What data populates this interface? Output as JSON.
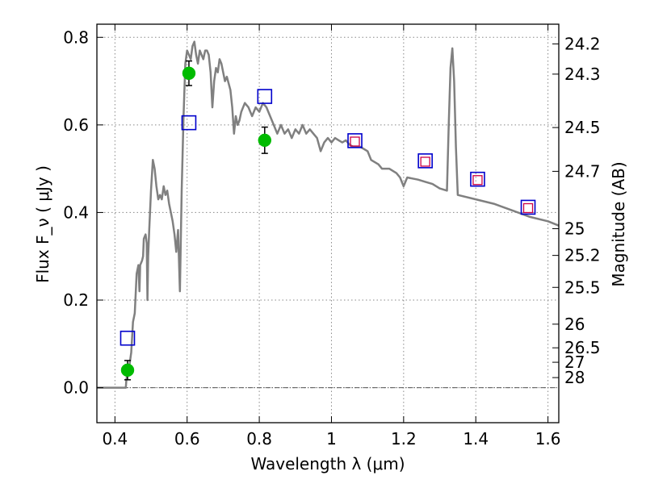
{
  "chart_data": {
    "type": "line",
    "title": "",
    "xlabel": "Wavelength  λ (μm)",
    "ylabel": "Flux  F_ν  ( μJy )",
    "y2label": "Magnitude (AB)",
    "xlim": [
      0.35,
      1.63
    ],
    "ylim": [
      -0.08,
      0.83
    ],
    "grid": true,
    "legend": "none",
    "x_ticks": [
      {
        "value": 0.4,
        "label": "0.4"
      },
      {
        "value": 0.6,
        "label": "0.6"
      },
      {
        "value": 0.8,
        "label": "0.8"
      },
      {
        "value": 1.0,
        "label": "1"
      },
      {
        "value": 1.2,
        "label": "1.2"
      },
      {
        "value": 1.4,
        "label": "1.4"
      },
      {
        "value": 1.6,
        "label": "1.6"
      }
    ],
    "y_ticks": [
      {
        "value": 0.0,
        "label": "0.0"
      },
      {
        "value": 0.2,
        "label": "0.2"
      },
      {
        "value": 0.4,
        "label": "0.4"
      },
      {
        "value": 0.6,
        "label": "0.6"
      },
      {
        "value": 0.8,
        "label": "0.8"
      }
    ],
    "magnitude_ticks": [
      {
        "value": 0.785,
        "label": "24.2"
      },
      {
        "value": 0.716,
        "label": "24.3"
      },
      {
        "value": 0.594,
        "label": "24.5"
      },
      {
        "value": 0.494,
        "label": "24.7"
      },
      {
        "value": 0.363,
        "label": "25"
      },
      {
        "value": 0.302,
        "label": "25.2"
      },
      {
        "value": 0.229,
        "label": "25.5"
      },
      {
        "value": 0.145,
        "label": "26"
      },
      {
        "value": 0.091,
        "label": "26.5"
      },
      {
        "value": 0.058,
        "label": "27"
      },
      {
        "value": 0.023,
        "label": "28"
      }
    ],
    "colors": {
      "model": "#808080",
      "observed": "#00bb00",
      "model_photometry": "#0000cc",
      "alt_photometry": "#cc0044",
      "error_bar": "#000000",
      "grid": "#888888",
      "zero_line": "#555555"
    },
    "series": [
      {
        "type": "line",
        "points": [
          [
            0.35,
            0.0
          ],
          [
            0.43,
            0.0
          ],
          [
            0.432,
            0.02
          ],
          [
            0.44,
            0.05
          ],
          [
            0.445,
            0.08
          ],
          [
            0.45,
            0.15
          ],
          [
            0.455,
            0.17
          ],
          [
            0.46,
            0.26
          ],
          [
            0.465,
            0.28
          ],
          [
            0.468,
            0.22
          ],
          [
            0.47,
            0.28
          ],
          [
            0.475,
            0.29
          ],
          [
            0.478,
            0.3
          ],
          [
            0.48,
            0.34
          ],
          [
            0.485,
            0.35
          ],
          [
            0.488,
            0.33
          ],
          [
            0.49,
            0.2
          ],
          [
            0.492,
            0.3
          ],
          [
            0.495,
            0.36
          ],
          [
            0.5,
            0.45
          ],
          [
            0.505,
            0.52
          ],
          [
            0.51,
            0.5
          ],
          [
            0.515,
            0.46
          ],
          [
            0.52,
            0.43
          ],
          [
            0.525,
            0.44
          ],
          [
            0.53,
            0.43
          ],
          [
            0.535,
            0.46
          ],
          [
            0.54,
            0.44
          ],
          [
            0.545,
            0.45
          ],
          [
            0.55,
            0.42
          ],
          [
            0.555,
            0.4
          ],
          [
            0.56,
            0.38
          ],
          [
            0.565,
            0.35
          ],
          [
            0.57,
            0.31
          ],
          [
            0.575,
            0.36
          ],
          [
            0.58,
            0.22
          ],
          [
            0.585,
            0.45
          ],
          [
            0.59,
            0.62
          ],
          [
            0.595,
            0.74
          ],
          [
            0.6,
            0.77
          ],
          [
            0.605,
            0.76
          ],
          [
            0.61,
            0.75
          ],
          [
            0.615,
            0.78
          ],
          [
            0.62,
            0.79
          ],
          [
            0.625,
            0.76
          ],
          [
            0.63,
            0.74
          ],
          [
            0.635,
            0.77
          ],
          [
            0.64,
            0.76
          ],
          [
            0.645,
            0.75
          ],
          [
            0.65,
            0.77
          ],
          [
            0.655,
            0.77
          ],
          [
            0.66,
            0.76
          ],
          [
            0.665,
            0.72
          ],
          [
            0.67,
            0.64
          ],
          [
            0.675,
            0.7
          ],
          [
            0.68,
            0.73
          ],
          [
            0.685,
            0.72
          ],
          [
            0.69,
            0.75
          ],
          [
            0.695,
            0.74
          ],
          [
            0.7,
            0.72
          ],
          [
            0.705,
            0.7
          ],
          [
            0.71,
            0.71
          ],
          [
            0.72,
            0.68
          ],
          [
            0.725,
            0.64
          ],
          [
            0.73,
            0.58
          ],
          [
            0.735,
            0.62
          ],
          [
            0.74,
            0.6
          ],
          [
            0.745,
            0.61
          ],
          [
            0.75,
            0.63
          ],
          [
            0.76,
            0.65
          ],
          [
            0.77,
            0.64
          ],
          [
            0.78,
            0.62
          ],
          [
            0.79,
            0.64
          ],
          [
            0.8,
            0.63
          ],
          [
            0.81,
            0.65
          ],
          [
            0.82,
            0.64
          ],
          [
            0.83,
            0.62
          ],
          [
            0.84,
            0.6
          ],
          [
            0.85,
            0.58
          ],
          [
            0.86,
            0.6
          ],
          [
            0.87,
            0.58
          ],
          [
            0.88,
            0.59
          ],
          [
            0.89,
            0.57
          ],
          [
            0.9,
            0.59
          ],
          [
            0.91,
            0.58
          ],
          [
            0.92,
            0.6
          ],
          [
            0.93,
            0.58
          ],
          [
            0.94,
            0.59
          ],
          [
            0.95,
            0.58
          ],
          [
            0.96,
            0.57
          ],
          [
            0.97,
            0.54
          ],
          [
            0.98,
            0.56
          ],
          [
            0.99,
            0.57
          ],
          [
            1.0,
            0.56
          ],
          [
            1.01,
            0.57
          ],
          [
            1.02,
            0.565
          ],
          [
            1.03,
            0.56
          ],
          [
            1.04,
            0.565
          ],
          [
            1.05,
            0.555
          ],
          [
            1.06,
            0.55
          ],
          [
            1.08,
            0.55
          ],
          [
            1.1,
            0.54
          ],
          [
            1.11,
            0.52
          ],
          [
            1.13,
            0.51
          ],
          [
            1.14,
            0.5
          ],
          [
            1.16,
            0.5
          ],
          [
            1.18,
            0.49
          ],
          [
            1.19,
            0.48
          ],
          [
            1.2,
            0.46
          ],
          [
            1.21,
            0.48
          ],
          [
            1.24,
            0.475
          ],
          [
            1.26,
            0.47
          ],
          [
            1.28,
            0.465
          ],
          [
            1.3,
            0.455
          ],
          [
            1.32,
            0.45
          ],
          [
            1.325,
            0.6
          ],
          [
            1.33,
            0.73
          ],
          [
            1.335,
            0.775
          ],
          [
            1.34,
            0.7
          ],
          [
            1.345,
            0.55
          ],
          [
            1.35,
            0.44
          ],
          [
            1.4,
            0.43
          ],
          [
            1.45,
            0.42
          ],
          [
            1.5,
            0.405
          ],
          [
            1.55,
            0.39
          ],
          [
            1.6,
            0.38
          ],
          [
            1.63,
            0.37
          ]
        ]
      },
      {
        "type": "scatter",
        "marker": "circle",
        "points": [
          {
            "x": 0.435,
            "y": 0.04,
            "yerr": 0.022
          },
          {
            "x": 0.605,
            "y": 0.718,
            "yerr": 0.028
          },
          {
            "x": 0.815,
            "y": 0.565,
            "yerr": 0.03
          }
        ]
      },
      {
        "type": "scatter",
        "marker": "open-square",
        "points": [
          {
            "x": 0.435,
            "y": 0.113
          },
          {
            "x": 0.605,
            "y": 0.605
          },
          {
            "x": 0.815,
            "y": 0.665
          },
          {
            "x": 1.065,
            "y": 0.564
          },
          {
            "x": 1.26,
            "y": 0.518
          },
          {
            "x": 1.405,
            "y": 0.476
          },
          {
            "x": 1.545,
            "y": 0.412
          }
        ]
      },
      {
        "type": "scatter",
        "marker": "small-open-square",
        "points": [
          {
            "x": 1.065,
            "y": 0.562
          },
          {
            "x": 1.26,
            "y": 0.516
          },
          {
            "x": 1.405,
            "y": 0.474
          },
          {
            "x": 1.545,
            "y": 0.41
          }
        ]
      }
    ]
  }
}
